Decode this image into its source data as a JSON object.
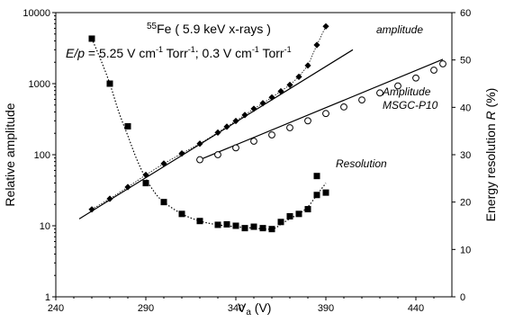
{
  "chart_data": {
    "type": "scatter",
    "annotation_title": {
      "sup": "55",
      "text": "Fe ( 5.9 keV x-rays )"
    },
    "annotation_ep": {
      "label": "E/p",
      "text": " = 5.25 V cm",
      "sup1": "-1",
      "mid1": " Torr",
      "sup2": "-1",
      "mid2": "; 0.3 V cm",
      "sup3": "-1",
      "mid3": " Torr",
      "sup4": "-1"
    },
    "xlabel": {
      "main": "V",
      "sub": "a",
      "rest": " (V)"
    },
    "ylabel_left": "Relative amplitude",
    "ylabel_right": {
      "text": "Energy resolution ",
      "italic": "R",
      "rest": " (%)"
    },
    "xlim": [
      240,
      460
    ],
    "ylim_left": [
      1,
      10000
    ],
    "ylim_right": [
      0,
      60
    ],
    "y_left_scale": "log",
    "x_ticks": [
      "240",
      "290",
      "340",
      "390",
      "440"
    ],
    "y_left_ticks": [
      "1",
      "10",
      "100",
      "1000",
      "10000"
    ],
    "y_right_ticks": [
      "0",
      "10",
      "20",
      "30",
      "40",
      "50",
      "60"
    ],
    "grid": false,
    "series_labels": {
      "amplitude": "amplitude",
      "msgc_line1": "Amplitude",
      "msgc_line2": "MSGC-P10",
      "resolution": "Resolution"
    },
    "series": [
      {
        "key": "amplitude",
        "marker": "diamond",
        "axis": "left",
        "x": [
          260,
          270,
          280,
          290,
          300,
          310,
          320,
          330,
          335,
          340,
          345,
          350,
          355,
          360,
          365,
          370,
          375,
          380,
          385,
          390
        ],
        "y": [
          17,
          24,
          35,
          52,
          75,
          104,
          143,
          205,
          248,
          298,
          362,
          443,
          530,
          640,
          780,
          960,
          1250,
          1800,
          3500,
          6400
        ]
      },
      {
        "key": "msgc",
        "marker": "open-circle",
        "axis": "left",
        "x": [
          320,
          330,
          340,
          350,
          360,
          370,
          380,
          390,
          400,
          410,
          420,
          430,
          440,
          450,
          455
        ],
        "y": [
          85,
          100,
          125,
          155,
          190,
          240,
          300,
          380,
          470,
          590,
          740,
          930,
          1200,
          1550,
          1900
        ]
      },
      {
        "key": "resolution",
        "marker": "square",
        "axis": "right",
        "x": [
          260,
          270,
          280,
          290,
          300,
          310,
          320,
          330,
          335,
          340,
          345,
          350,
          355,
          360,
          365,
          370,
          375,
          380,
          385,
          385,
          390
        ],
        "y": [
          54.5,
          45,
          36,
          24,
          20,
          17.5,
          16,
          15.2,
          15.3,
          15,
          14.5,
          14.8,
          14.5,
          14.3,
          15.8,
          17,
          17.5,
          18.5,
          21.5,
          25.5,
          22
        ]
      }
    ],
    "fit_lines": [
      {
        "of": "amplitude",
        "x": [
          253,
          405
        ],
        "y": [
          12.5,
          3000
        ]
      },
      {
        "of": "msgc",
        "x": [
          320,
          455
        ],
        "y": [
          85,
          2200
        ]
      }
    ],
    "resolution_curve": {
      "x": [
        260,
        265,
        270,
        275,
        280,
        285,
        290,
        295,
        300,
        310,
        320,
        330,
        340,
        350,
        360,
        365,
        370,
        375,
        380,
        385,
        390
      ],
      "y": [
        54.5,
        50,
        45,
        39,
        34,
        29,
        25,
        22,
        20,
        17.5,
        16,
        15.2,
        14.8,
        14.5,
        14.3,
        15.3,
        16.5,
        17.5,
        19,
        21.5,
        24
      ]
    },
    "colors": {
      "marker": "#000000",
      "line": "#000000",
      "fit": "#000000"
    }
  }
}
